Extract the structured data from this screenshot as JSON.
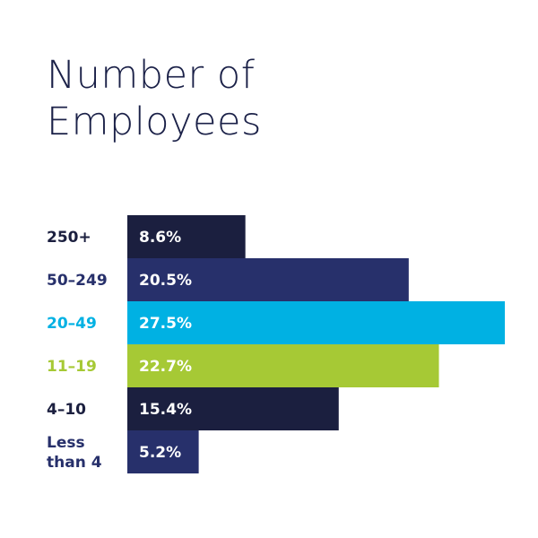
{
  "chart_data": {
    "type": "bar",
    "orientation": "horizontal",
    "title_lines": [
      "Number of",
      "Employees"
    ],
    "categories": [
      [
        "250+"
      ],
      [
        "50–249"
      ],
      [
        "20–49"
      ],
      [
        "11–19"
      ],
      [
        "4–10"
      ],
      [
        "Less",
        "than 4"
      ]
    ],
    "values": [
      8.6,
      20.5,
      27.5,
      22.7,
      15.4,
      5.2
    ],
    "value_labels": [
      "8.6%",
      "20.5%",
      "27.5%",
      "22.7%",
      "15.4%",
      "5.2%"
    ],
    "colors": [
      "#1b1f3f",
      "#27306b",
      "#00b1e3",
      "#a6c935",
      "#1b1f3f",
      "#27306b"
    ],
    "label_colors": [
      "#1b1f3f",
      "#27306b",
      "#00b1e3",
      "#a6c935",
      "#1b1f3f",
      "#27306b"
    ],
    "xlim": [
      0,
      27.5
    ],
    "grid": false,
    "legend": "none"
  }
}
